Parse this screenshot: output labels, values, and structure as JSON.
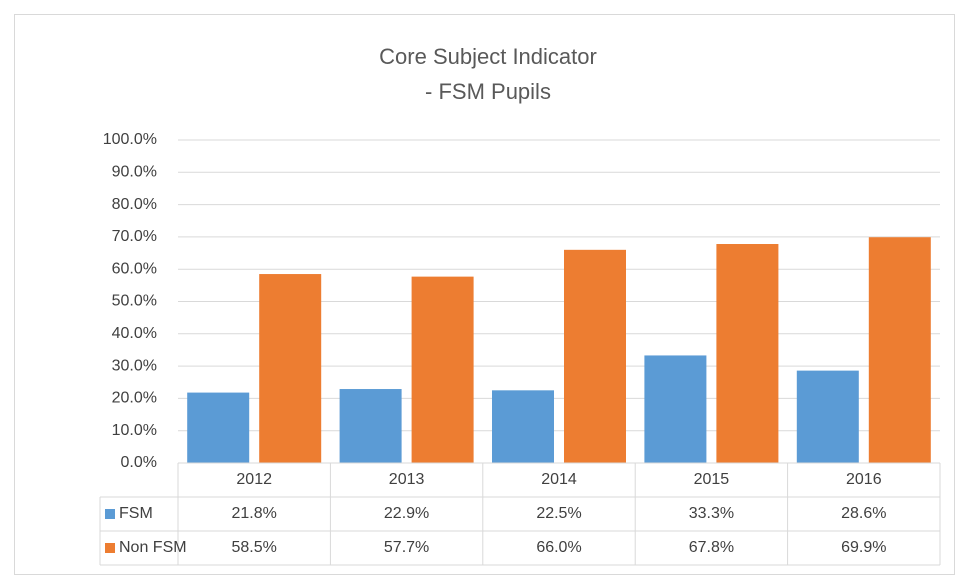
{
  "chart_data": {
    "type": "bar",
    "title": "Core Subject Indicator",
    "subtitle": "- FSM Pupils",
    "categories": [
      "2012",
      "2013",
      "2014",
      "2015",
      "2016"
    ],
    "series": [
      {
        "name": "FSM",
        "color": "#5b9bd5",
        "values": [
          21.8,
          22.9,
          22.5,
          33.3,
          28.6
        ],
        "value_labels": [
          "21.8%",
          "22.9%",
          "22.5%",
          "33.3%",
          "28.6%"
        ]
      },
      {
        "name": "Non FSM",
        "color": "#ed7d31",
        "values": [
          58.5,
          57.7,
          66.0,
          67.8,
          69.9
        ],
        "value_labels": [
          "58.5%",
          "57.7%",
          "66.0%",
          "67.8%",
          "69.9%"
        ]
      }
    ],
    "ylim": [
      0,
      100
    ],
    "yticks": [
      {
        "value": 0,
        "label": "0.0%"
      },
      {
        "value": 10,
        "label": "10.0%"
      },
      {
        "value": 20,
        "label": "20.0%"
      },
      {
        "value": 30,
        "label": "30.0%"
      },
      {
        "value": 40,
        "label": "40.0%"
      },
      {
        "value": 50,
        "label": "50.0%"
      },
      {
        "value": 60,
        "label": "60.0%"
      },
      {
        "value": 70,
        "label": "70.0%"
      },
      {
        "value": 80,
        "label": "80.0%"
      },
      {
        "value": 90,
        "label": "90.0%"
      },
      {
        "value": 100,
        "label": "100.0%"
      }
    ],
    "grid": true,
    "data_table": true
  }
}
